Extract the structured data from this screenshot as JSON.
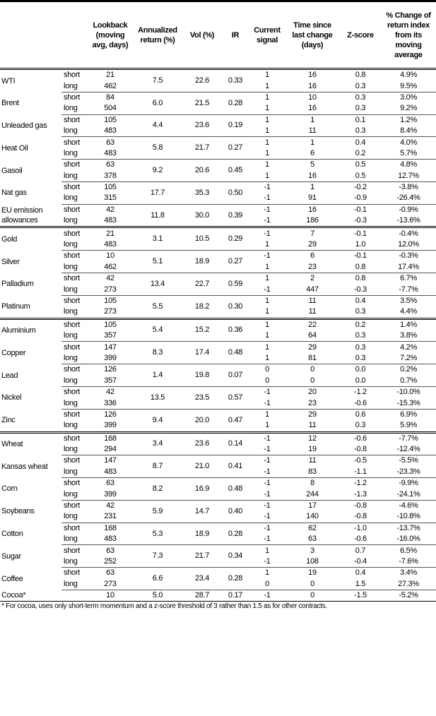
{
  "headers": [
    "",
    "",
    "Lookback (moving avg, days)",
    "Annualized return (%)",
    "Vol (%)",
    "IR",
    "Current signal",
    "Time since last change (days)",
    "Z-score",
    "% Change of return index from its moving average"
  ],
  "groups": [
    {
      "items": [
        {
          "name": "WTI",
          "ann": "7.5",
          "vol": "22.6",
          "ir": "0.33",
          "rows": [
            {
              "type": "short",
              "lb": "21",
              "sig": "1",
              "t": "16",
              "z": "0.8",
              "pct": "4.9%"
            },
            {
              "type": "long",
              "lb": "462",
              "sig": "1",
              "t": "16",
              "z": "0.3",
              "pct": "9.5%"
            }
          ]
        },
        {
          "name": "Brent",
          "ann": "6.0",
          "vol": "21.5",
          "ir": "0.28",
          "rows": [
            {
              "type": "short",
              "lb": "84",
              "sig": "1",
              "t": "10",
              "z": "0.3",
              "pct": "3.0%"
            },
            {
              "type": "long",
              "lb": "504",
              "sig": "1",
              "t": "16",
              "z": "0.3",
              "pct": "9.2%"
            }
          ]
        },
        {
          "name": "Unleaded gas",
          "ann": "4.4",
          "vol": "23.6",
          "ir": "0.19",
          "rows": [
            {
              "type": "short",
              "lb": "105",
              "sig": "1",
              "t": "1",
              "z": "0.1",
              "pct": "1.2%"
            },
            {
              "type": "long",
              "lb": "483",
              "sig": "1",
              "t": "11",
              "z": "0.3",
              "pct": "8.4%"
            }
          ]
        },
        {
          "name": "Heat Oil",
          "ann": "5.8",
          "vol": "21.7",
          "ir": "0.27",
          "rows": [
            {
              "type": "short",
              "lb": "63",
              "sig": "1",
              "t": "1",
              "z": "0.4",
              "pct": "4.0%"
            },
            {
              "type": "long",
              "lb": "483",
              "sig": "1",
              "t": "6",
              "z": "0.2",
              "pct": "5.7%"
            }
          ]
        },
        {
          "name": "Gasoil",
          "ann": "9.2",
          "vol": "20.6",
          "ir": "0.45",
          "rows": [
            {
              "type": "short",
              "lb": "63",
              "sig": "1",
              "t": "5",
              "z": "0.5",
              "pct": "4.8%"
            },
            {
              "type": "long",
              "lb": "378",
              "sig": "1",
              "t": "16",
              "z": "0.5",
              "pct": "12.7%"
            }
          ]
        },
        {
          "name": "Nat gas",
          "ann": "17.7",
          "vol": "35.3",
          "ir": "0.50",
          "rows": [
            {
              "type": "short",
              "lb": "105",
              "sig": "-1",
              "t": "1",
              "z": "-0.2",
              "pct": "-3.8%"
            },
            {
              "type": "long",
              "lb": "315",
              "sig": "-1",
              "t": "91",
              "z": "-0.9",
              "pct": "-26.4%"
            }
          ]
        },
        {
          "name": "EU emission allowances",
          "ann": "11.8",
          "vol": "30.0",
          "ir": "0.39",
          "rows": [
            {
              "type": "short",
              "lb": "42",
              "sig": "-1",
              "t": "16",
              "z": "-0.1",
              "pct": "-0.9%"
            },
            {
              "type": "long",
              "lb": "483",
              "sig": "-1",
              "t": "186",
              "z": "-0.3",
              "pct": "-13.6%"
            }
          ]
        }
      ]
    },
    {
      "items": [
        {
          "name": "Gold",
          "ann": "3.1",
          "vol": "10.5",
          "ir": "0.29",
          "rows": [
            {
              "type": "short",
              "lb": "21",
              "sig": "-1",
              "t": "7",
              "z": "-0.1",
              "pct": "-0.4%"
            },
            {
              "type": "long",
              "lb": "483",
              "sig": "1",
              "t": "29",
              "z": "1.0",
              "pct": "12.0%"
            }
          ]
        },
        {
          "name": "Silver",
          "ann": "5.1",
          "vol": "18.9",
          "ir": "0.27",
          "rows": [
            {
              "type": "short",
              "lb": "10",
              "sig": "-1",
              "t": "6",
              "z": "-0.1",
              "pct": "-0.3%"
            },
            {
              "type": "long",
              "lb": "462",
              "sig": "1",
              "t": "23",
              "z": "0.8",
              "pct": "17.4%"
            }
          ]
        },
        {
          "name": "Palladium",
          "ann": "13.4",
          "vol": "22.7",
          "ir": "0.59",
          "rows": [
            {
              "type": "short",
              "lb": "42",
              "sig": "1",
              "t": "2",
              "z": "0.8",
              "pct": "6.7%"
            },
            {
              "type": "long",
              "lb": "273",
              "sig": "-1",
              "t": "447",
              "z": "-0.3",
              "pct": "-7.7%"
            }
          ]
        },
        {
          "name": "Platinum",
          "ann": "5.5",
          "vol": "18.2",
          "ir": "0.30",
          "rows": [
            {
              "type": "short",
              "lb": "105",
              "sig": "1",
              "t": "11",
              "z": "0.4",
              "pct": "3.5%"
            },
            {
              "type": "long",
              "lb": "273",
              "sig": "1",
              "t": "11",
              "z": "0.3",
              "pct": "4.4%"
            }
          ]
        }
      ]
    },
    {
      "items": [
        {
          "name": "Aluminium",
          "ann": "5.4",
          "vol": "15.2",
          "ir": "0.36",
          "rows": [
            {
              "type": "short",
              "lb": "105",
              "sig": "1",
              "t": "22",
              "z": "0.2",
              "pct": "1.4%"
            },
            {
              "type": "long",
              "lb": "357",
              "sig": "1",
              "t": "64",
              "z": "0.3",
              "pct": "3.8%"
            }
          ]
        },
        {
          "name": "Copper",
          "ann": "8.3",
          "vol": "17.4",
          "ir": "0.48",
          "rows": [
            {
              "type": "short",
              "lb": "147",
              "sig": "1",
              "t": "29",
              "z": "0.3",
              "pct": "4.2%"
            },
            {
              "type": "long",
              "lb": "399",
              "sig": "1",
              "t": "81",
              "z": "0.3",
              "pct": "7.2%"
            }
          ]
        },
        {
          "name": "Lead",
          "ann": "1.4",
          "vol": "19.8",
          "ir": "0.07",
          "rows": [
            {
              "type": "short",
              "lb": "126",
              "sig": "0",
              "t": "0",
              "z": "0.0",
              "pct": "0.2%"
            },
            {
              "type": "long",
              "lb": "357",
              "sig": "0",
              "t": "0",
              "z": "0.0",
              "pct": "0.7%"
            }
          ]
        },
        {
          "name": "Nickel",
          "ann": "13.5",
          "vol": "23.5",
          "ir": "0.57",
          "rows": [
            {
              "type": "short",
              "lb": "42",
              "sig": "-1",
              "t": "20",
              "z": "-1.2",
              "pct": "-10.0%"
            },
            {
              "type": "long",
              "lb": "336",
              "sig": "-1",
              "t": "23",
              "z": "-0.6",
              "pct": "-15.3%"
            }
          ]
        },
        {
          "name": "Zinc",
          "ann": "9.4",
          "vol": "20.0",
          "ir": "0.47",
          "rows": [
            {
              "type": "short",
              "lb": "126",
              "sig": "1",
              "t": "29",
              "z": "0.6",
              "pct": "6.9%"
            },
            {
              "type": "long",
              "lb": "399",
              "sig": "1",
              "t": "11",
              "z": "0.3",
              "pct": "5.9%"
            }
          ]
        }
      ]
    },
    {
      "items": [
        {
          "name": "Wheat",
          "ann": "3.4",
          "vol": "23.6",
          "ir": "0.14",
          "rows": [
            {
              "type": "short",
              "lb": "168",
              "sig": "-1",
              "t": "12",
              "z": "-0.6",
              "pct": "-7.7%"
            },
            {
              "type": "long",
              "lb": "294",
              "sig": "-1",
              "t": "19",
              "z": "-0.8",
              "pct": "-12.4%"
            }
          ]
        },
        {
          "name": "Kansas wheat",
          "ann": "8.7",
          "vol": "21.0",
          "ir": "0.41",
          "rows": [
            {
              "type": "short",
              "lb": "147",
              "sig": "-1",
              "t": "11",
              "z": "-0.5",
              "pct": "-5.5%"
            },
            {
              "type": "long",
              "lb": "483",
              "sig": "-1",
              "t": "83",
              "z": "-1.1",
              "pct": "-23.3%"
            }
          ]
        },
        {
          "name": "Corn",
          "ann": "8.2",
          "vol": "16.9",
          "ir": "0.48",
          "rows": [
            {
              "type": "short",
              "lb": "63",
              "sig": "-1",
              "t": "8",
              "z": "-1.2",
              "pct": "-9.9%"
            },
            {
              "type": "long",
              "lb": "399",
              "sig": "-1",
              "t": "244",
              "z": "-1.3",
              "pct": "-24.1%"
            }
          ]
        },
        {
          "name": "Soybeans",
          "ann": "5.9",
          "vol": "14.7",
          "ir": "0.40",
          "rows": [
            {
              "type": "short",
              "lb": "42",
              "sig": "-1",
              "t": "17",
              "z": "-0.8",
              "pct": "-4.6%"
            },
            {
              "type": "long",
              "lb": "231",
              "sig": "-1",
              "t": "140",
              "z": "-0.8",
              "pct": "-10.8%"
            }
          ]
        },
        {
          "name": "Cotton",
          "ann": "5.3",
          "vol": "18.9",
          "ir": "0.28",
          "rows": [
            {
              "type": "short",
              "lb": "168",
              "sig": "-1",
              "t": "62",
              "z": "-1.0",
              "pct": "-13.7%"
            },
            {
              "type": "long",
              "lb": "483",
              "sig": "-1",
              "t": "63",
              "z": "-0.6",
              "pct": "-16.0%"
            }
          ]
        },
        {
          "name": "Sugar",
          "ann": "7.3",
          "vol": "21.7",
          "ir": "0.34",
          "rows": [
            {
              "type": "short",
              "lb": "63",
              "sig": "1",
              "t": "3",
              "z": "0.7",
              "pct": "6.5%"
            },
            {
              "type": "long",
              "lb": "252",
              "sig": "-1",
              "t": "108",
              "z": "-0.4",
              "pct": "-7.6%"
            }
          ]
        },
        {
          "name": "Coffee",
          "ann": "6.6",
          "vol": "23.4",
          "ir": "0.28",
          "rows": [
            {
              "type": "short",
              "lb": "63",
              "sig": "1",
              "t": "19",
              "z": "0.4",
              "pct": "3.4%"
            },
            {
              "type": "long",
              "lb": "273",
              "sig": "0",
              "t": "0",
              "z": "1.5",
              "pct": "27.3%"
            }
          ]
        },
        {
          "name": "Cocoa*",
          "ann": "5.0",
          "vol": "28.7",
          "ir": "0.17",
          "rows": [
            {
              "type": "",
              "lb": "10",
              "sig": "-1",
              "t": "0",
              "z": "-1.5",
              "pct": "-5.2%"
            }
          ]
        }
      ]
    }
  ],
  "footnote": "* For cocoa, uses only short-term momentum and a z-score threshold of 3 rather than 1.5 as for other contracts."
}
